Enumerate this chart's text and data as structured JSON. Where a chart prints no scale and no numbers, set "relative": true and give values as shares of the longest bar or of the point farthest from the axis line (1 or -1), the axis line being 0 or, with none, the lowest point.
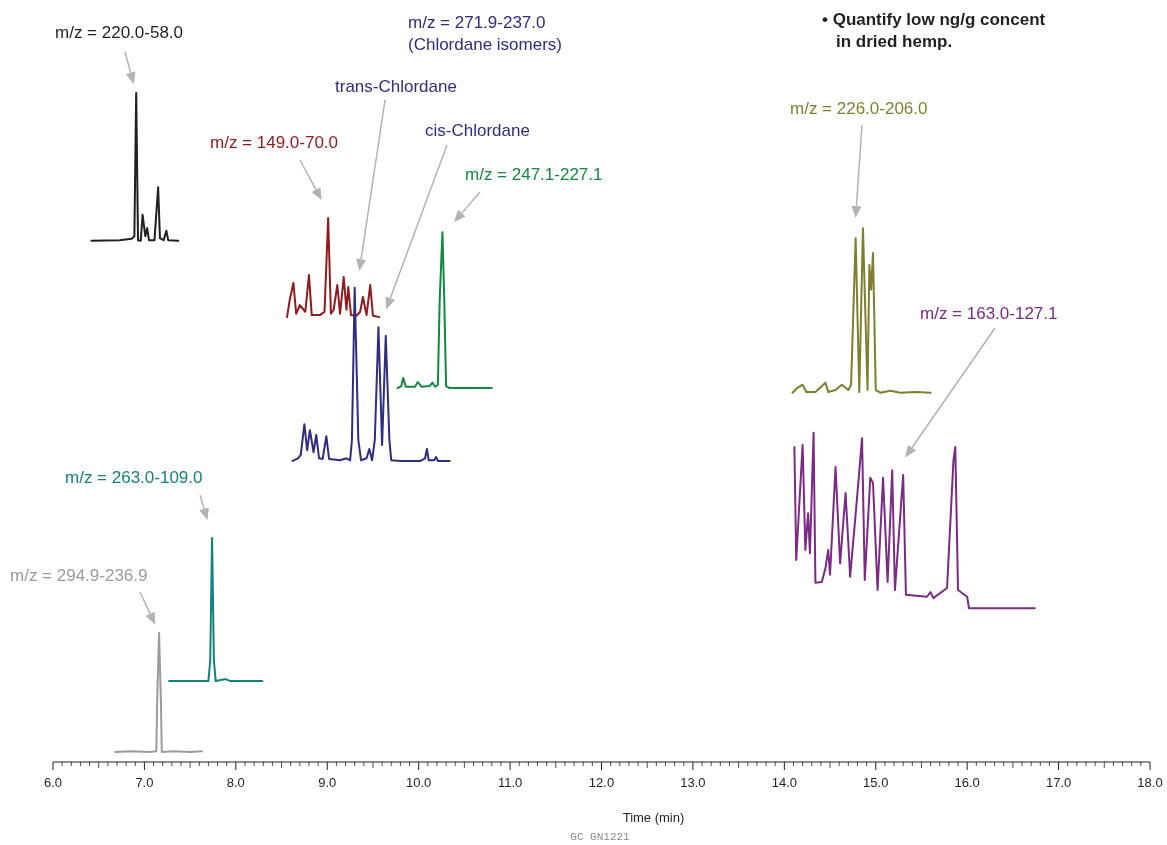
{
  "chart_data": {
    "type": "line",
    "relative": true,
    "xlabel": "Time (min)",
    "grid": false,
    "marker": "none",
    "line_style": "solid",
    "xlim": [
      6,
      18
    ],
    "xticks": [
      {
        "value": 6,
        "label": "6.0"
      },
      {
        "value": 7,
        "label": "7.0"
      },
      {
        "value": 8,
        "label": "8.0"
      },
      {
        "value": 9,
        "label": "9.0"
      },
      {
        "value": 10,
        "label": "10.0"
      },
      {
        "value": 11,
        "label": "11.0"
      },
      {
        "value": 12,
        "label": "12.0"
      },
      {
        "value": 13,
        "label": "13.0"
      },
      {
        "value": 14,
        "label": "14.0"
      },
      {
        "value": 15,
        "label": "15.0"
      },
      {
        "value": 16,
        "label": "16.0"
      },
      {
        "value": 17,
        "label": "17.0"
      },
      {
        "value": 18,
        "label": "18.0"
      }
    ],
    "series": [
      {
        "color": "#231f20",
        "x": [
          6.42,
          6.73,
          6.86,
          6.89,
          6.91,
          6.93,
          6.96,
          6.98,
          7.01,
          7.03,
          7.05,
          7.11,
          7.15,
          7.17,
          7.21,
          7.24,
          7.26,
          7.37
        ],
        "values": [
          0.779,
          0.78,
          0.782,
          0.786,
          1,
          0.78,
          0.779,
          0.818,
          0.786,
          0.798,
          0.78,
          0.78,
          0.859,
          0.783,
          0.78,
          0.794,
          0.78,
          0.779
        ]
      },
      {
        "color": "#8e1b1e",
        "x": [
          8.56,
          8.59,
          8.63,
          8.66,
          8.7,
          8.76,
          8.8,
          8.83,
          8.92,
          8.97,
          9.01,
          9.04,
          9.07,
          9.11,
          9.14,
          9.18,
          9.21,
          9.23,
          9.26,
          9.32,
          9.36,
          9.39,
          9.43,
          9.47,
          9.5,
          9.57
        ],
        "values": [
          0.665,
          0.691,
          0.716,
          0.67,
          0.683,
          0.673,
          0.728,
          0.668,
          0.668,
          0.673,
          0.813,
          0.67,
          0.676,
          0.713,
          0.67,
          0.725,
          0.676,
          0.71,
          0.668,
          0.667,
          0.673,
          0.695,
          0.668,
          0.713,
          0.667,
          0.665
        ]
      },
      {
        "color": "#2e2d7f",
        "x": [
          8.62,
          8.68,
          8.71,
          8.75,
          8.78,
          8.81,
          8.85,
          8.88,
          8.91,
          8.95,
          8.99,
          9.02,
          9.14,
          9.21,
          9.25,
          9.27,
          9.3,
          9.34,
          9.37,
          9.43,
          9.46,
          9.49,
          9.52,
          9.56,
          9.6,
          9.64,
          9.68,
          9.7,
          9.8,
          10.02,
          10.07,
          10.09,
          10.11,
          10.17,
          10.19,
          10.21,
          10.34
        ],
        "values": [
          0.45,
          0.454,
          0.459,
          0.505,
          0.466,
          0.496,
          0.463,
          0.489,
          0.454,
          0.453,
          0.487,
          0.453,
          0.451,
          0.454,
          0.451,
          0.481,
          0.709,
          0.481,
          0.451,
          0.454,
          0.468,
          0.451,
          0.481,
          0.65,
          0.474,
          0.637,
          0.481,
          0.451,
          0.45,
          0.45,
          0.454,
          0.468,
          0.451,
          0.451,
          0.456,
          0.45,
          0.45
        ]
      },
      {
        "color": "#12893f",
        "x": [
          9.77,
          9.81,
          9.83,
          9.86,
          9.96,
          9.99,
          10.03,
          10.12,
          10.15,
          10.18,
          10.21,
          10.23,
          10.26,
          10.28,
          10.3,
          10.34,
          10.56,
          10.8
        ],
        "values": [
          0.559,
          0.562,
          0.574,
          0.561,
          0.561,
          0.568,
          0.561,
          0.562,
          0.567,
          0.561,
          0.564,
          0.691,
          0.792,
          0.691,
          0.562,
          0.559,
          0.559,
          0.559
        ]
      },
      {
        "color": "#13827f",
        "x": [
          7.27,
          7.5,
          7.7,
          7.72,
          7.74,
          7.76,
          7.78,
          7.89,
          7.94,
          8.29
        ],
        "values": [
          0.121,
          0.121,
          0.121,
          0.152,
          0.335,
          0.152,
          0.121,
          0.124,
          0.121,
          0.121
        ]
      },
      {
        "color": "#9b9b9b",
        "x": [
          6.68,
          6.84,
          7.06,
          7.13,
          7.14,
          7.16,
          7.18,
          7.19,
          7.33,
          7.5,
          7.63
        ],
        "values": [
          0.015,
          0.016,
          0.015,
          0.016,
          0.093,
          0.193,
          0.093,
          0.015,
          0.016,
          0.015,
          0.016
        ]
      },
      {
        "color": "#7f7f2e",
        "x": [
          14.09,
          14.14,
          14.2,
          14.24,
          14.34,
          14.45,
          14.48,
          14.56,
          14.63,
          14.7,
          14.73,
          14.78,
          14.82,
          14.86,
          14.91,
          14.93,
          14.95,
          14.97,
          15.0,
          15.05,
          15.16,
          15.27,
          15.43,
          15.6
        ],
        "values": [
          0.552,
          0.559,
          0.564,
          0.553,
          0.553,
          0.567,
          0.553,
          0.556,
          0.564,
          0.556,
          0.564,
          0.783,
          0.553,
          0.798,
          0.556,
          0.743,
          0.706,
          0.761,
          0.556,
          0.552,
          0.555,
          0.552,
          0.553,
          0.552
        ]
      },
      {
        "color": "#7b2a86",
        "x": [
          14.11,
          14.13,
          14.2,
          14.23,
          14.26,
          14.28,
          14.32,
          14.34,
          14.41,
          14.45,
          14.48,
          14.5,
          14.56,
          14.61,
          14.67,
          14.72,
          14.8,
          14.85,
          14.88,
          14.94,
          14.97,
          15.02,
          15.08,
          15.13,
          15.18,
          15.21,
          15.3,
          15.33,
          15.56,
          15.6,
          15.63,
          15.78,
          15.85,
          15.87,
          15.9,
          16.0,
          16.02,
          16.74
        ],
        "values": [
          0.471,
          0.302,
          0.474,
          0.317,
          0.372,
          0.312,
          0.492,
          0.268,
          0.269,
          0.29,
          0.317,
          0.28,
          0.441,
          0.297,
          0.402,
          0.277,
          0.402,
          0.484,
          0.272,
          0.425,
          0.417,
          0.257,
          0.425,
          0.269,
          0.436,
          0.257,
          0.429,
          0.25,
          0.247,
          0.254,
          0.245,
          0.26,
          0.451,
          0.471,
          0.257,
          0.247,
          0.23,
          0.23
        ]
      }
    ],
    "annotations": [
      {
        "text": "m/z = 220.0-58.0",
        "x": 6.91,
        "y": 1
      },
      "m/z = 271.9-237.0\n(Chlordane isomers)",
      "m/z = 149.0-70.0",
      "trans-Chlordane",
      "cis-Chlordane",
      "m/z = 247.1-227.1",
      "m/z = 226.0-206.0",
      "m/z = 163.0-127.1",
      "m/z = 263.0-109.0",
      {
        "text": "m/z = 294.9-236.9",
        "x": 7.16,
        "y": 0.193
      },
      "• Quantify low ng/g concent\nin dried hemp.",
      "GC GN1221"
    ]
  }
}
